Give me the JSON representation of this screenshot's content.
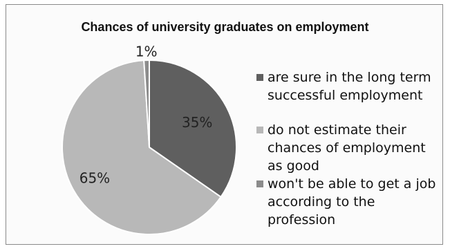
{
  "chart_data": {
    "type": "pie",
    "title": "Chances of university graduates on employment",
    "slices": [
      {
        "label": "are sure in the long term successful employment",
        "value": 35,
        "display": "35%",
        "color": "#5f5f5f"
      },
      {
        "label": "do not estimate their chances of employment as good",
        "value": 65,
        "display": "65%",
        "color": "#b8b8b8"
      },
      {
        "label": " won't be able to get a job according to the profession",
        "value": 1,
        "display": "1%",
        "color": "#8c8c8c"
      }
    ],
    "legend_position": "right"
  }
}
